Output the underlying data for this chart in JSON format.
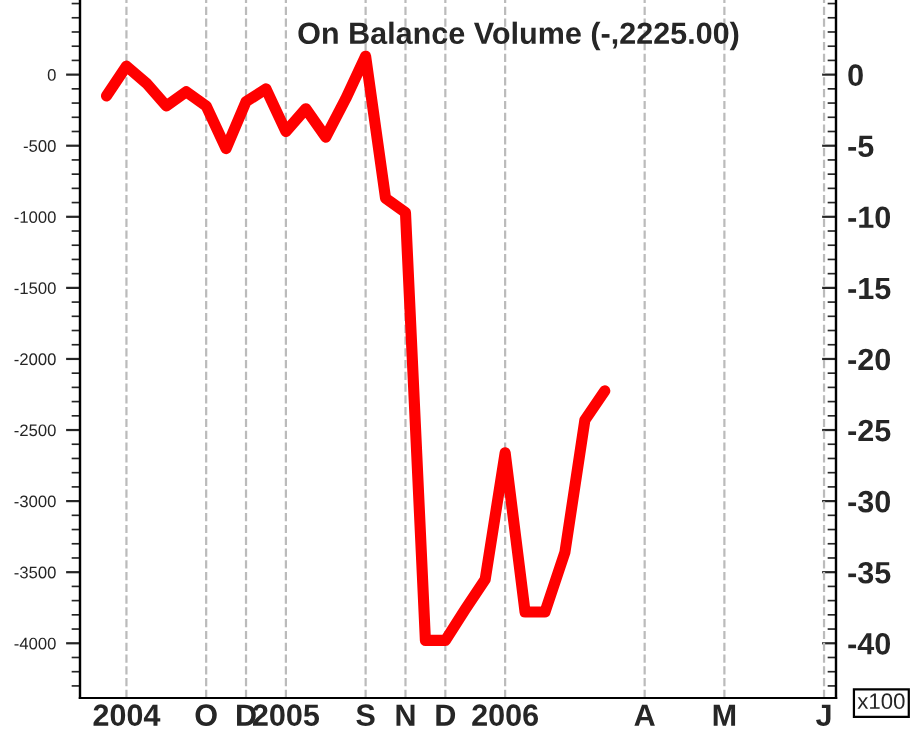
{
  "chart_data": {
    "type": "line",
    "title": "On Balance Volume (-,2225.00)",
    "categories": [
      null,
      "2004",
      null,
      null,
      null,
      "O",
      null,
      "D",
      null,
      "2005",
      null,
      null,
      null,
      "S",
      null,
      "N",
      null,
      "D",
      null,
      null,
      "2006",
      null,
      null,
      null,
      null,
      null,
      null,
      "A",
      null,
      null,
      null,
      "M",
      null,
      null,
      null,
      null,
      "J"
    ],
    "series": [
      {
        "color": "#ff0000",
        "values": [
          -150,
          60,
          -60,
          -220,
          -120,
          -220,
          -520,
          -190,
          -100,
          -400,
          -240,
          -440,
          -170,
          130,
          -870,
          -970,
          -3980,
          -3980,
          -3760,
          -3550,
          -2660,
          -3780,
          -3780,
          -3360,
          -2430,
          -2225,
          null,
          null,
          null,
          null,
          null,
          null,
          null,
          null,
          null,
          null,
          null
        ]
      }
    ],
    "ylim": [
      -4385,
      525
    ],
    "yticks": [
      0,
      -500,
      -1000,
      -1500,
      -2000,
      -2500,
      -3000,
      -3500,
      -4000
    ],
    "y2lim": [
      -43.85,
      5.25
    ],
    "y2ticks": [
      0,
      -5,
      -10,
      -15,
      -20,
      -25,
      -30,
      -35,
      -40
    ],
    "annotations": [
      "x100"
    ],
    "grid": "x",
    "legend": false,
    "marker": "none",
    "line_style": "solid"
  }
}
